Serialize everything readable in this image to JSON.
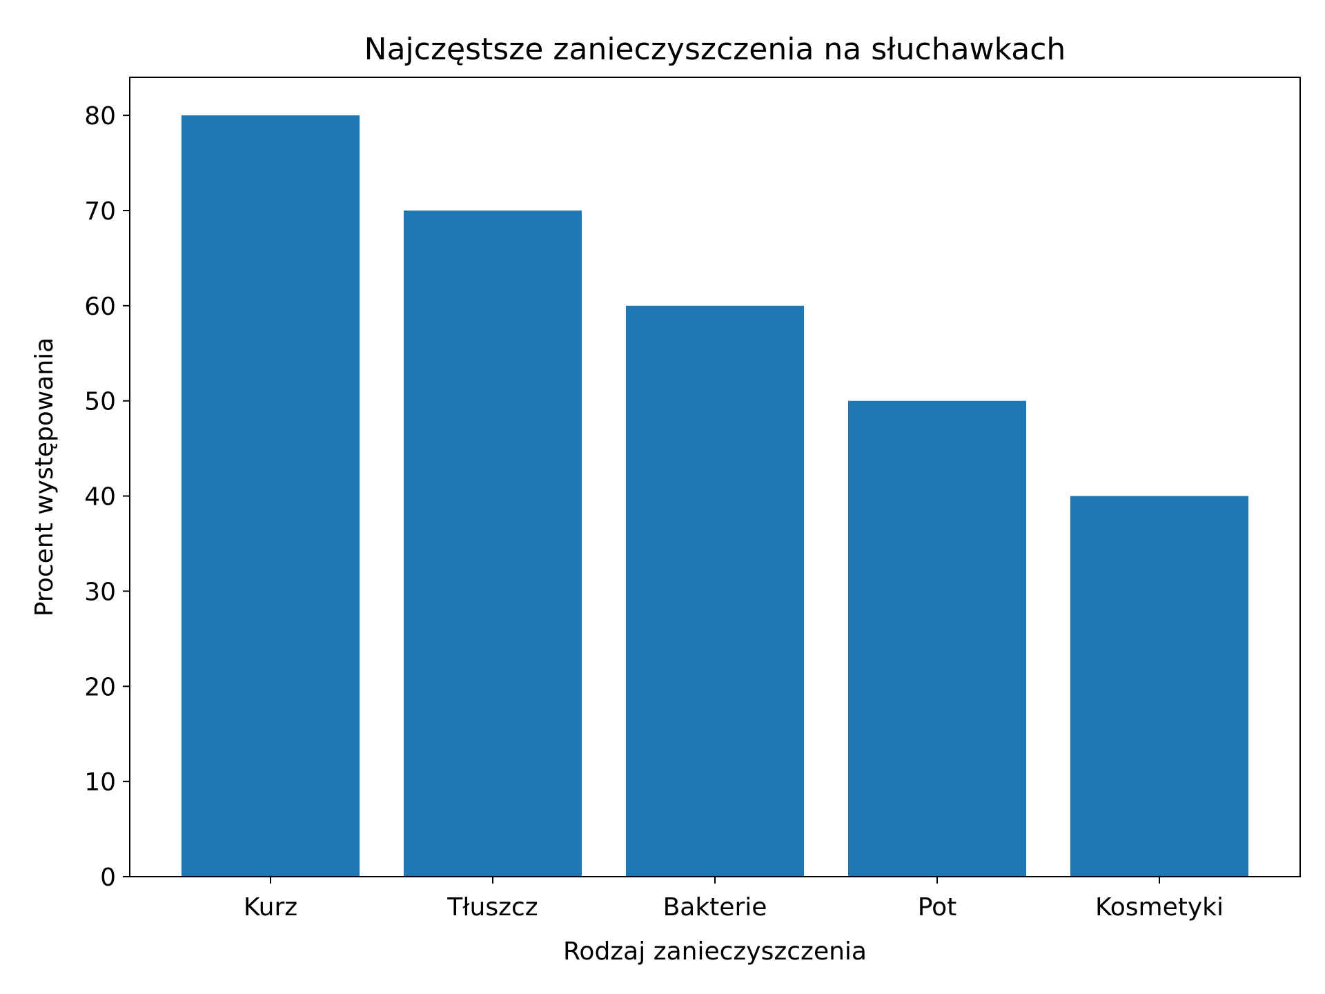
{
  "chart_data": {
    "type": "bar",
    "title": "Najczęstsze zanieczyszczenia na słuchawkach",
    "xlabel": "Rodzaj zanieczyszczenia",
    "ylabel": "Procent występowania",
    "categories": [
      "Kurz",
      "Tłuszcz",
      "Bakterie",
      "Pot",
      "Kosmetyki"
    ],
    "values": [
      80,
      70,
      60,
      50,
      40
    ],
    "ylim": [
      0,
      84
    ],
    "yticks": [
      "0",
      "10",
      "20",
      "30",
      "40",
      "50",
      "60",
      "70",
      "80"
    ],
    "grid": false,
    "legend": "none",
    "bar_color": "#1f77b4"
  }
}
